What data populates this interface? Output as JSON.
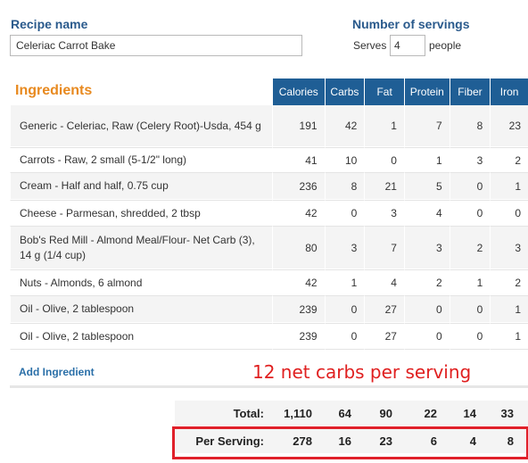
{
  "recipe": {
    "title": "Recipe name",
    "name_value": "Celeriac Carrot Bake"
  },
  "servings": {
    "title": "Number of servings",
    "serves_label": "Serves",
    "value": "4",
    "people_label": "people"
  },
  "ingredients": {
    "title": "Ingredients",
    "columns": [
      "Calories",
      "Carbs",
      "Fat",
      "Protein",
      "Fiber",
      "Iron"
    ],
    "rows": [
      {
        "name": "Generic - Celeriac, Raw (Celery Root)-Usda, 454 g",
        "values": [
          "191",
          "42",
          "1",
          "7",
          "8",
          "23"
        ]
      },
      {
        "name": "Carrots - Raw, 2 small (5-1/2\" long)",
        "values": [
          "41",
          "10",
          "0",
          "1",
          "3",
          "2"
        ]
      },
      {
        "name": "Cream - Half and half, 0.75 cup",
        "values": [
          "236",
          "8",
          "21",
          "5",
          "0",
          "1"
        ]
      },
      {
        "name": "Cheese - Parmesan, shredded, 2 tbsp",
        "values": [
          "42",
          "0",
          "3",
          "4",
          "0",
          "0"
        ]
      },
      {
        "name": "Bob's Red Mill - Almond Meal/Flour- Net Carb (3), 14 g (1/4 cup)",
        "values": [
          "80",
          "3",
          "7",
          "3",
          "2",
          "3"
        ]
      },
      {
        "name": "Nuts - Almonds, 6 almond",
        "values": [
          "42",
          "1",
          "4",
          "2",
          "1",
          "2"
        ]
      },
      {
        "name": "Oil - Olive, 2 tablespoon",
        "values": [
          "239",
          "0",
          "27",
          "0",
          "0",
          "1"
        ]
      },
      {
        "name": "Oil - Olive, 2 tablespoon",
        "values": [
          "239",
          "0",
          "27",
          "0",
          "0",
          "1"
        ]
      }
    ],
    "add_label": "Add Ingredient"
  },
  "annotation": {
    "net_carbs_text": "12 net carbs per serving",
    "color": "#e02020"
  },
  "totals": {
    "label": "Total:",
    "values": [
      "1,110",
      "64",
      "90",
      "22",
      "14",
      "33"
    ]
  },
  "per_serving": {
    "label": "Per Serving:",
    "values": [
      "278",
      "16",
      "23",
      "6",
      "4",
      "8"
    ]
  },
  "colors": {
    "header_bg": "#1f5e95",
    "section_title": "#2a5a8c",
    "ingredients_title": "#e88a20",
    "highlight_border": "#e0202a"
  }
}
